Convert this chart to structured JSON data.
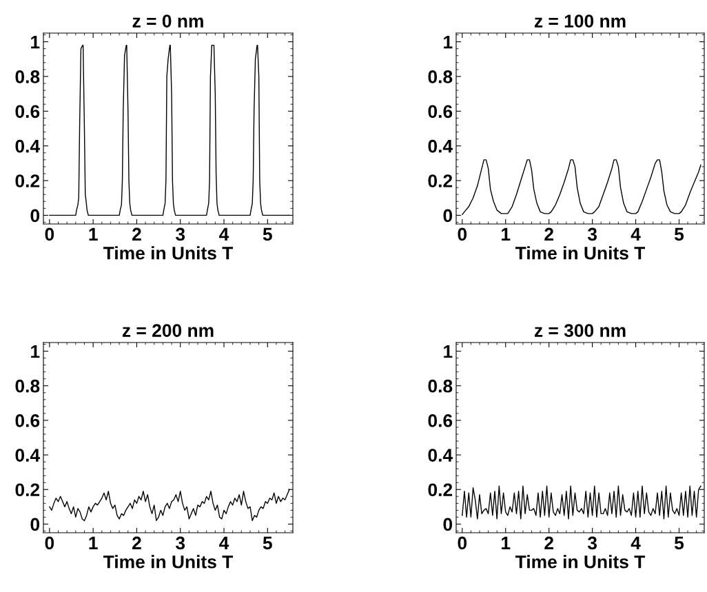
{
  "chart_data": [
    {
      "type": "line",
      "title": "z = 0 nm",
      "xlabel": "Time in Units T",
      "xlim": [
        -0.14,
        5.58
      ],
      "ylim": [
        -0.05,
        1.05
      ],
      "xticks": [
        0,
        1,
        2,
        3,
        4,
        5
      ],
      "yticks": [
        0,
        0.2,
        0.4,
        0.6,
        0.8,
        1
      ],
      "grid": false,
      "marker": "none",
      "line_style": "solid",
      "series": [
        {
          "color": "#000000",
          "x": [
            0,
            0.6,
            0.62,
            0.65,
            0.67,
            0.69,
            0.72,
            0.76,
            0.77,
            0.8,
            0.82,
            0.84,
            0.86,
            0.89,
            1.6,
            1.62,
            1.65,
            1.67,
            1.69,
            1.72,
            1.76,
            1.77,
            1.8,
            1.82,
            1.84,
            1.86,
            1.89,
            2.6,
            2.62,
            2.65,
            2.67,
            2.69,
            2.72,
            2.76,
            2.77,
            2.8,
            2.82,
            2.84,
            2.86,
            2.89,
            3.6,
            3.62,
            3.65,
            3.67,
            3.69,
            3.72,
            3.76,
            3.77,
            3.8,
            3.82,
            3.84,
            3.86,
            3.89,
            4.6,
            4.62,
            4.65,
            4.67,
            4.69,
            4.72,
            4.76,
            4.77,
            4.8,
            4.82,
            4.84,
            4.86,
            4.89,
            5.5
          ],
          "values": [
            0,
            0,
            0.03,
            0.06,
            0.1,
            0.5,
            0.96,
            0.98,
            0.98,
            0.5,
            0.12,
            0.08,
            0.03,
            0,
            0,
            0.03,
            0.06,
            0.2,
            0.6,
            0.92,
            0.98,
            0.98,
            0.6,
            0.2,
            0.07,
            0.03,
            0,
            0,
            0.03,
            0.07,
            0.2,
            0.8,
            0.9,
            0.98,
            0.98,
            0.7,
            0.2,
            0.07,
            0.03,
            0,
            0,
            0.03,
            0.07,
            0.2,
            0.8,
            0.98,
            0.98,
            0.98,
            0.7,
            0.24,
            0.07,
            0.03,
            0,
            0,
            0.03,
            0.07,
            0.2,
            0.6,
            0.9,
            0.98,
            0.98,
            0.8,
            0.2,
            0.07,
            0.03,
            0,
            0
          ]
        }
      ]
    },
    {
      "type": "line",
      "title": "z = 100 nm",
      "xlabel": "Time in Units T",
      "xlim": [
        -0.14,
        5.58
      ],
      "ylim": [
        -0.05,
        1.05
      ],
      "xticks": [
        0,
        1,
        2,
        3,
        4,
        5
      ],
      "yticks": [
        0,
        0.2,
        0.4,
        0.6,
        0.8,
        1
      ],
      "grid": false,
      "marker": "none",
      "line_style": "solid",
      "series": [
        {
          "color": "#000000",
          "x": [
            0,
            0.05,
            0.15,
            0.25,
            0.35,
            0.45,
            0.5,
            0.55,
            0.6,
            0.65,
            0.72,
            0.8,
            0.9,
            1.0,
            1.05,
            1.15,
            1.25,
            1.35,
            1.45,
            1.5,
            1.55,
            1.6,
            1.65,
            1.72,
            1.8,
            1.9,
            2.0,
            2.05,
            2.15,
            2.25,
            2.35,
            2.45,
            2.5,
            2.55,
            2.6,
            2.65,
            2.72,
            2.8,
            2.9,
            3.0,
            3.05,
            3.15,
            3.25,
            3.35,
            3.45,
            3.5,
            3.55,
            3.6,
            3.65,
            3.72,
            3.8,
            3.9,
            4.0,
            4.05,
            4.15,
            4.25,
            4.35,
            4.45,
            4.5,
            4.55,
            4.6,
            4.65,
            4.72,
            4.8,
            4.9,
            5.0,
            5.05,
            5.15,
            5.25,
            5.35,
            5.45,
            5.5
          ],
          "values": [
            0.005,
            0.02,
            0.05,
            0.1,
            0.17,
            0.27,
            0.32,
            0.32,
            0.27,
            0.15,
            0.08,
            0.03,
            0.01,
            0.01,
            0.01,
            0.05,
            0.12,
            0.2,
            0.28,
            0.32,
            0.32,
            0.26,
            0.15,
            0.07,
            0.02,
            0.01,
            0.01,
            0.02,
            0.06,
            0.12,
            0.19,
            0.27,
            0.32,
            0.32,
            0.28,
            0.16,
            0.07,
            0.02,
            0.01,
            0.01,
            0.02,
            0.05,
            0.12,
            0.19,
            0.27,
            0.32,
            0.32,
            0.28,
            0.16,
            0.07,
            0.02,
            0.01,
            0.01,
            0.02,
            0.08,
            0.15,
            0.22,
            0.3,
            0.32,
            0.32,
            0.25,
            0.14,
            0.06,
            0.02,
            0.01,
            0.01,
            0.02,
            0.06,
            0.13,
            0.19,
            0.25,
            0.29
          ]
        }
      ]
    },
    {
      "type": "line",
      "title": "z = 200 nm",
      "xlabel": "Time in Units T",
      "xlim": [
        -0.14,
        5.58
      ],
      "ylim": [
        -0.05,
        1.05
      ],
      "xticks": [
        0,
        1,
        2,
        3,
        4,
        5
      ],
      "yticks": [
        0,
        0.2,
        0.4,
        0.6,
        0.8,
        1
      ],
      "grid": false,
      "marker": "none",
      "line_style": "solid",
      "series": [
        {
          "color": "#000000",
          "x": [
            0,
            0.05,
            0.1,
            0.15,
            0.2,
            0.25,
            0.3,
            0.35,
            0.4,
            0.45,
            0.5,
            0.55,
            0.6,
            0.65,
            0.7,
            0.75,
            0.8,
            0.85,
            0.9,
            0.95,
            1.0,
            1.05,
            1.1,
            1.15,
            1.2,
            1.25,
            1.3,
            1.35,
            1.4,
            1.45,
            1.5,
            1.55,
            1.6,
            1.65,
            1.7,
            1.75,
            1.8,
            1.85,
            1.9,
            1.95,
            2.0,
            2.05,
            2.1,
            2.15,
            2.2,
            2.25,
            2.3,
            2.35,
            2.4,
            2.45,
            2.5,
            2.55,
            2.6,
            2.65,
            2.7,
            2.75,
            2.8,
            2.85,
            2.9,
            2.95,
            3.0,
            3.05,
            3.1,
            3.15,
            3.2,
            3.25,
            3.3,
            3.35,
            3.4,
            3.45,
            3.5,
            3.55,
            3.6,
            3.65,
            3.7,
            3.75,
            3.8,
            3.85,
            3.9,
            3.95,
            4.0,
            4.05,
            4.1,
            4.15,
            4.2,
            4.25,
            4.3,
            4.35,
            4.4,
            4.45,
            4.5,
            4.55,
            4.6,
            4.65,
            4.7,
            4.75,
            4.8,
            4.85,
            4.9,
            4.95,
            5.0,
            5.05,
            5.1,
            5.15,
            5.2,
            5.25,
            5.3,
            5.35,
            5.4,
            5.45,
            5.5
          ],
          "values": [
            0.1,
            0.08,
            0.12,
            0.15,
            0.13,
            0.16,
            0.13,
            0.1,
            0.13,
            0.09,
            0.06,
            0.1,
            0.04,
            0.09,
            0.07,
            0.03,
            0.02,
            0.05,
            0.1,
            0.07,
            0.1,
            0.12,
            0.11,
            0.13,
            0.15,
            0.18,
            0.14,
            0.19,
            0.12,
            0.09,
            0.11,
            0.05,
            0.03,
            0.06,
            0.05,
            0.08,
            0.1,
            0.12,
            0.09,
            0.14,
            0.12,
            0.16,
            0.14,
            0.19,
            0.13,
            0.17,
            0.1,
            0.06,
            0.11,
            0.02,
            0.04,
            0.08,
            0.05,
            0.1,
            0.12,
            0.09,
            0.13,
            0.14,
            0.17,
            0.13,
            0.19,
            0.12,
            0.08,
            0.1,
            0.03,
            0.06,
            0.09,
            0.05,
            0.11,
            0.1,
            0.13,
            0.12,
            0.16,
            0.14,
            0.19,
            0.12,
            0.08,
            0.11,
            0.04,
            0.03,
            0.08,
            0.06,
            0.1,
            0.13,
            0.11,
            0.15,
            0.13,
            0.17,
            0.11,
            0.19,
            0.13,
            0.09,
            0.1,
            0.02,
            0.05,
            0.04,
            0.08,
            0.1,
            0.09,
            0.13,
            0.12,
            0.15,
            0.14,
            0.18,
            0.12,
            0.16,
            0.13,
            0.15,
            0.14,
            0.17,
            0.2
          ]
        }
      ]
    },
    {
      "type": "line",
      "title": "z = 300 nm",
      "xlabel": "Time in Units T",
      "xlim": [
        -0.14,
        5.58
      ],
      "ylim": [
        -0.05,
        1.05
      ],
      "xticks": [
        0,
        1,
        2,
        3,
        4,
        5
      ],
      "yticks": [
        0,
        0.2,
        0.4,
        0.6,
        0.8,
        1
      ],
      "grid": false,
      "marker": "none",
      "line_style": "solid",
      "series": [
        {
          "color": "#000000",
          "x": [
            0,
            0.05,
            0.1,
            0.15,
            0.2,
            0.25,
            0.3,
            0.35,
            0.4,
            0.45,
            0.5,
            0.55,
            0.6,
            0.65,
            0.7,
            0.75,
            0.8,
            0.85,
            0.9,
            0.95,
            1.0,
            1.05,
            1.1,
            1.15,
            1.2,
            1.25,
            1.3,
            1.35,
            1.4,
            1.45,
            1.5,
            1.55,
            1.6,
            1.65,
            1.7,
            1.75,
            1.8,
            1.85,
            1.9,
            1.95,
            2.0,
            2.05,
            2.1,
            2.15,
            2.2,
            2.25,
            2.3,
            2.35,
            2.4,
            2.45,
            2.5,
            2.55,
            2.6,
            2.65,
            2.7,
            2.75,
            2.8,
            2.85,
            2.9,
            2.95,
            3.0,
            3.05,
            3.1,
            3.15,
            3.2,
            3.25,
            3.3,
            3.35,
            3.4,
            3.45,
            3.5,
            3.55,
            3.6,
            3.65,
            3.7,
            3.75,
            3.8,
            3.85,
            3.9,
            3.95,
            4.0,
            4.05,
            4.1,
            4.15,
            4.2,
            4.25,
            4.3,
            4.35,
            4.4,
            4.45,
            4.5,
            4.55,
            4.6,
            4.65,
            4.7,
            4.75,
            4.8,
            4.85,
            4.9,
            4.95,
            5.0,
            5.05,
            5.1,
            5.15,
            5.2,
            5.25,
            5.3,
            5.35,
            5.4,
            5.45,
            5.5
          ],
          "values": [
            0.05,
            0.19,
            0.04,
            0.18,
            0.04,
            0.21,
            0.14,
            0.03,
            0.17,
            0.06,
            0.08,
            0.09,
            0.06,
            0.18,
            0.05,
            0.19,
            0.03,
            0.22,
            0.06,
            0.18,
            0.07,
            0.05,
            0.1,
            0.07,
            0.18,
            0.06,
            0.19,
            0.03,
            0.22,
            0.06,
            0.17,
            0.08,
            0.08,
            0.09,
            0.05,
            0.18,
            0.04,
            0.19,
            0.05,
            0.22,
            0.04,
            0.18,
            0.07,
            0.05,
            0.09,
            0.06,
            0.17,
            0.05,
            0.19,
            0.03,
            0.22,
            0.05,
            0.18,
            0.08,
            0.07,
            0.09,
            0.06,
            0.19,
            0.04,
            0.18,
            0.05,
            0.22,
            0.04,
            0.18,
            0.06,
            0.06,
            0.09,
            0.05,
            0.18,
            0.06,
            0.19,
            0.04,
            0.22,
            0.05,
            0.17,
            0.08,
            0.07,
            0.09,
            0.05,
            0.18,
            0.04,
            0.19,
            0.04,
            0.22,
            0.06,
            0.18,
            0.07,
            0.05,
            0.09,
            0.06,
            0.18,
            0.05,
            0.19,
            0.03,
            0.22,
            0.04,
            0.18,
            0.08,
            0.06,
            0.09,
            0.05,
            0.18,
            0.05,
            0.19,
            0.04,
            0.22,
            0.05,
            0.19,
            0.04,
            0.2,
            0.22
          ]
        }
      ]
    }
  ]
}
